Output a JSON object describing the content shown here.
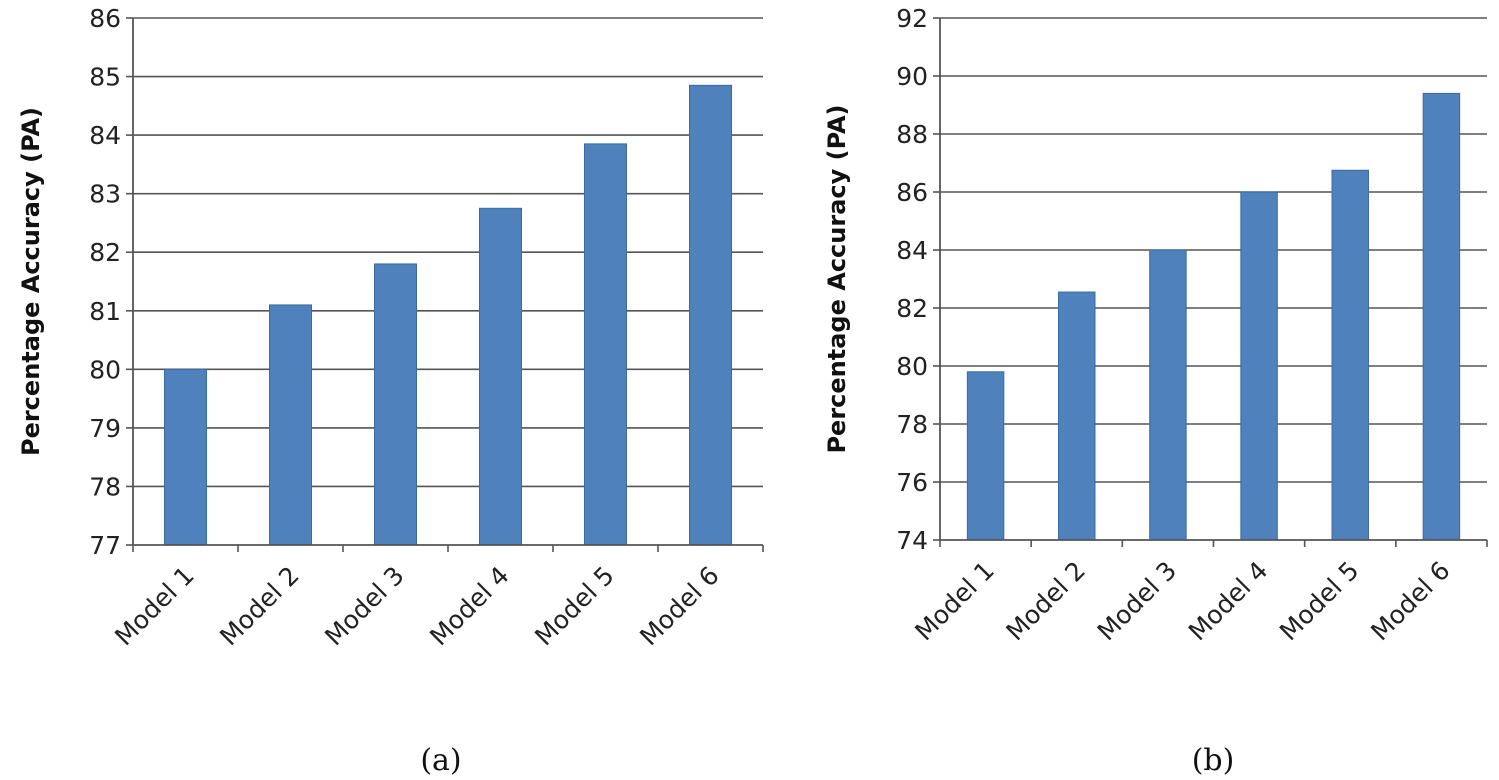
{
  "colors": {
    "bar_fill": "#4f81bd",
    "bar_edge": "#3c6a9f",
    "gridline": "#555555"
  },
  "chart_data": [
    {
      "type": "bar",
      "panel_label": "(a)",
      "ylabel": "Percentage Accuracy  (PA)",
      "xlabel": "",
      "categories": [
        "Model 1",
        "Model 2",
        "Model 3",
        "Model 4",
        "Model 5",
        "Model 6"
      ],
      "values": [
        80.0,
        81.1,
        81.8,
        82.75,
        83.85,
        84.85
      ],
      "ylim": [
        77,
        86
      ],
      "yticks": [
        77,
        78,
        79,
        80,
        81,
        82,
        83,
        84,
        85,
        86
      ],
      "grid": true
    },
    {
      "type": "bar",
      "panel_label": "(b)",
      "ylabel": "Percentage Accuracy  (PA)",
      "xlabel": "",
      "categories": [
        "Model 1",
        "Model 2",
        "Model 3",
        "Model 4",
        "Model 5",
        "Model 6"
      ],
      "values": [
        79.8,
        82.55,
        84.0,
        86.0,
        86.75,
        89.4
      ],
      "ylim": [
        74,
        92
      ],
      "yticks": [
        74,
        76,
        78,
        80,
        82,
        84,
        86,
        88,
        90,
        92
      ],
      "grid": true
    }
  ]
}
